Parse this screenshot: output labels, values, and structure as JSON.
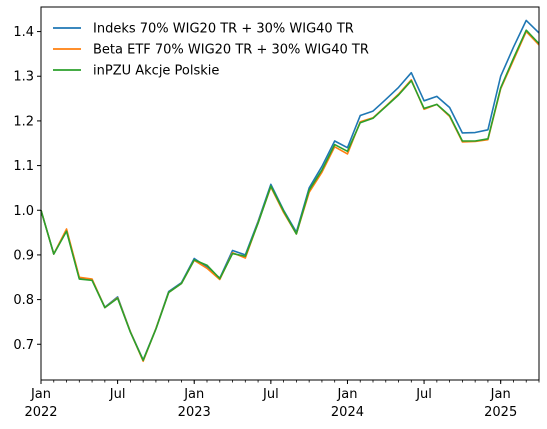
{
  "chart_data": {
    "type": "line",
    "title": "",
    "xlabel": "",
    "ylabel": "",
    "legend_position": "top-left",
    "grid": false,
    "ylim": [
      0.62,
      1.455
    ],
    "xlim": [
      "2022-01",
      "2025-04"
    ],
    "y_ticks": [
      "0.7",
      "0.8",
      "0.9",
      "1.0",
      "1.1",
      "1.2",
      "1.3",
      "1.4"
    ],
    "x_ticks": [
      {
        "date": "2022-01",
        "label": "Jan",
        "sublabel": "2022"
      },
      {
        "date": "2022-07",
        "label": "Jul",
        "sublabel": ""
      },
      {
        "date": "2023-01",
        "label": "Jan",
        "sublabel": "2023"
      },
      {
        "date": "2023-07",
        "label": "Jul",
        "sublabel": ""
      },
      {
        "date": "2024-01",
        "label": "Jan",
        "sublabel": "2024"
      },
      {
        "date": "2024-07",
        "label": "Jul",
        "sublabel": ""
      },
      {
        "date": "2025-01",
        "label": "Jan",
        "sublabel": "2025"
      }
    ],
    "x": [
      "2022-01",
      "2022-02",
      "2022-03",
      "2022-04",
      "2022-05",
      "2022-06",
      "2022-07",
      "2022-08",
      "2022-09",
      "2022-10",
      "2022-11",
      "2022-12",
      "2023-01",
      "2023-02",
      "2023-03",
      "2023-04",
      "2023-05",
      "2023-06",
      "2023-07",
      "2023-08",
      "2023-09",
      "2023-10",
      "2023-11",
      "2023-12",
      "2024-01",
      "2024-02",
      "2024-03",
      "2024-04",
      "2024-05",
      "2024-06",
      "2024-07",
      "2024-08",
      "2024-09",
      "2024-10",
      "2024-11",
      "2024-12",
      "2025-01",
      "2025-02",
      "2025-03",
      "2025-04"
    ],
    "series": [
      {
        "name": "Indeks 70% WIG20 TR + 30% WIG40 TR",
        "color": "#1f77b4",
        "values": [
          1.0,
          0.902,
          0.955,
          0.848,
          0.844,
          0.783,
          0.806,
          0.728,
          0.665,
          0.735,
          0.818,
          0.838,
          0.892,
          0.873,
          0.848,
          0.91,
          0.9,
          0.975,
          1.058,
          1.0,
          0.951,
          1.05,
          1.098,
          1.155,
          1.14,
          1.212,
          1.222,
          1.248,
          1.275,
          1.308,
          1.245,
          1.255,
          1.23,
          1.173,
          1.174,
          1.18,
          1.3,
          1.365,
          1.425,
          1.397
        ]
      },
      {
        "name": "Beta ETF 70% WIG20 TR + 30% WIG40 TR",
        "color": "#ff7f0e",
        "values": [
          1.0,
          0.902,
          0.958,
          0.85,
          0.846,
          0.782,
          0.804,
          0.728,
          0.662,
          0.735,
          0.816,
          0.836,
          0.888,
          0.87,
          0.845,
          0.905,
          0.893,
          0.972,
          1.052,
          0.995,
          0.947,
          1.04,
          1.085,
          1.142,
          1.126,
          1.198,
          1.207,
          1.233,
          1.26,
          1.292,
          1.226,
          1.237,
          1.21,
          1.153,
          1.154,
          1.158,
          1.272,
          1.336,
          1.4,
          1.37
        ]
      },
      {
        "name": "inPZU Akcje Polskie",
        "color": "#2ca02c",
        "values": [
          1.0,
          0.902,
          0.953,
          0.846,
          0.843,
          0.782,
          0.803,
          0.727,
          0.664,
          0.734,
          0.816,
          0.836,
          0.889,
          0.877,
          0.847,
          0.903,
          0.897,
          0.971,
          1.054,
          0.998,
          0.947,
          1.045,
          1.09,
          1.147,
          1.132,
          1.196,
          1.206,
          1.232,
          1.258,
          1.29,
          1.228,
          1.237,
          1.212,
          1.155,
          1.155,
          1.16,
          1.274,
          1.34,
          1.403,
          1.373
        ]
      }
    ]
  }
}
